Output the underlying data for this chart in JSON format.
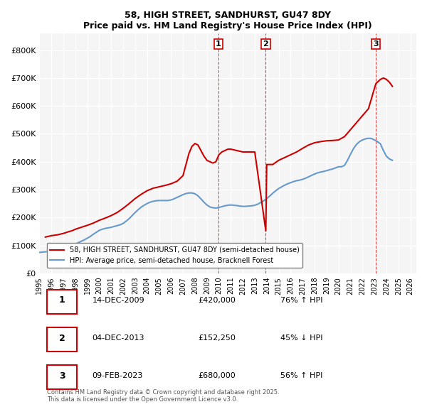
{
  "title": "58, HIGH STREET, SANDHURST, GU47 8DY",
  "subtitle": "Price paid vs. HM Land Registry's House Price Index (HPI)",
  "ylabel": "",
  "xlim_start": 1995.0,
  "xlim_end": 2026.5,
  "ylim_min": 0,
  "ylim_max": 860000,
  "yticks": [
    0,
    100000,
    200000,
    300000,
    400000,
    500000,
    600000,
    700000,
    800000
  ],
  "ytick_labels": [
    "£0",
    "£100K",
    "£200K",
    "£300K",
    "£400K",
    "£500K",
    "£600K",
    "£700K",
    "£800K"
  ],
  "legend_label_red": "58, HIGH STREET, SANDHURST, GU47 8DY (semi-detached house)",
  "legend_label_blue": "HPI: Average price, semi-detached house, Bracknell Forest",
  "sale1_date": 2009.95,
  "sale1_price": 420000,
  "sale1_label": "1",
  "sale2_date": 2013.92,
  "sale2_price": 152250,
  "sale2_label": "2",
  "sale3_date": 2023.12,
  "sale3_price": 680000,
  "sale3_label": "3",
  "red_color": "#cc0000",
  "blue_color": "#6699cc",
  "vline_color": "#cc0000",
  "background_color": "#f5f5f5",
  "grid_color": "#ffffff",
  "table_rows": [
    [
      "1",
      "14-DEC-2009",
      "£420,000",
      "76% ↑ HPI"
    ],
    [
      "2",
      "04-DEC-2013",
      "£152,250",
      "45% ↓ HPI"
    ],
    [
      "3",
      "09-FEB-2023",
      "£680,000",
      "56% ↑ HPI"
    ]
  ],
  "footer": "Contains HM Land Registry data © Crown copyright and database right 2025.\nThis data is licensed under the Open Government Licence v3.0.",
  "hpi_data_x": [
    1995.0,
    1995.25,
    1995.5,
    1995.75,
    1996.0,
    1996.25,
    1996.5,
    1996.75,
    1997.0,
    1997.25,
    1997.5,
    1997.75,
    1998.0,
    1998.25,
    1998.5,
    1998.75,
    1999.0,
    1999.25,
    1999.5,
    1999.75,
    2000.0,
    2000.25,
    2000.5,
    2000.75,
    2001.0,
    2001.25,
    2001.5,
    2001.75,
    2002.0,
    2002.25,
    2002.5,
    2002.75,
    2003.0,
    2003.25,
    2003.5,
    2003.75,
    2004.0,
    2004.25,
    2004.5,
    2004.75,
    2005.0,
    2005.25,
    2005.5,
    2005.75,
    2006.0,
    2006.25,
    2006.5,
    2006.75,
    2007.0,
    2007.25,
    2007.5,
    2007.75,
    2008.0,
    2008.25,
    2008.5,
    2008.75,
    2009.0,
    2009.25,
    2009.5,
    2009.75,
    2010.0,
    2010.25,
    2010.5,
    2010.75,
    2011.0,
    2011.25,
    2011.5,
    2011.75,
    2012.0,
    2012.25,
    2012.5,
    2012.75,
    2013.0,
    2013.25,
    2013.5,
    2013.75,
    2014.0,
    2014.25,
    2014.5,
    2014.75,
    2015.0,
    2015.25,
    2015.5,
    2015.75,
    2016.0,
    2016.25,
    2016.5,
    2016.75,
    2017.0,
    2017.25,
    2017.5,
    2017.75,
    2018.0,
    2018.25,
    2018.5,
    2018.75,
    2019.0,
    2019.25,
    2019.5,
    2019.75,
    2020.0,
    2020.25,
    2020.5,
    2020.75,
    2021.0,
    2021.25,
    2021.5,
    2021.75,
    2022.0,
    2022.25,
    2022.5,
    2022.75,
    2023.0,
    2023.25,
    2023.5,
    2023.75,
    2024.0,
    2024.25,
    2024.5
  ],
  "hpi_data_y": [
    75000,
    76000,
    77000,
    78000,
    80000,
    82000,
    84000,
    87000,
    90000,
    93000,
    97000,
    101000,
    105000,
    110000,
    115000,
    120000,
    126000,
    132000,
    140000,
    147000,
    154000,
    158000,
    161000,
    163000,
    165000,
    168000,
    171000,
    174000,
    179000,
    187000,
    196000,
    207000,
    218000,
    228000,
    237000,
    244000,
    250000,
    255000,
    258000,
    260000,
    261000,
    261000,
    261000,
    261000,
    263000,
    267000,
    272000,
    277000,
    282000,
    286000,
    288000,
    288000,
    285000,
    278000,
    267000,
    255000,
    245000,
    238000,
    235000,
    234000,
    236000,
    239000,
    242000,
    244000,
    245000,
    244000,
    243000,
    241000,
    240000,
    240000,
    241000,
    242000,
    244000,
    248000,
    254000,
    260000,
    268000,
    277000,
    287000,
    296000,
    304000,
    310000,
    316000,
    321000,
    325000,
    329000,
    332000,
    334000,
    337000,
    341000,
    346000,
    351000,
    356000,
    360000,
    363000,
    365000,
    368000,
    371000,
    374000,
    378000,
    382000,
    382000,
    387000,
    405000,
    427000,
    447000,
    462000,
    472000,
    478000,
    482000,
    484000,
    483000,
    478000,
    472000,
    464000,
    440000,
    420000,
    410000,
    405000
  ],
  "price_data_x": [
    1995.5,
    1996.0,
    1996.5,
    1997.0,
    1997.5,
    1997.75,
    1998.0,
    1998.5,
    1999.0,
    1999.5,
    2000.0,
    2000.5,
    2001.0,
    2001.5,
    2002.0,
    2002.5,
    2003.0,
    2003.5,
    2004.0,
    2004.5,
    2005.0,
    2005.5,
    2006.0,
    2006.5,
    2007.0,
    2007.25,
    2007.5,
    2007.75,
    2008.0,
    2008.25,
    2008.5,
    2008.75,
    2009.0,
    2009.5,
    2009.75,
    2009.95,
    2010.0,
    2010.25,
    2010.5,
    2010.75,
    2011.0,
    2011.5,
    2012.0,
    2012.5,
    2013.0,
    2013.92,
    2014.0,
    2014.5,
    2015.0,
    2015.5,
    2016.0,
    2016.5,
    2017.0,
    2017.5,
    2018.0,
    2018.5,
    2019.0,
    2019.5,
    2020.0,
    2020.5,
    2021.0,
    2021.5,
    2022.0,
    2022.5,
    2023.12,
    2023.5,
    2023.75,
    2024.0,
    2024.25,
    2024.5
  ],
  "price_data_y": [
    130000,
    135000,
    138000,
    143000,
    150000,
    153000,
    158000,
    165000,
    172000,
    180000,
    190000,
    198000,
    207000,
    218000,
    233000,
    250000,
    268000,
    283000,
    296000,
    305000,
    310000,
    315000,
    321000,
    330000,
    350000,
    390000,
    430000,
    455000,
    465000,
    460000,
    440000,
    420000,
    405000,
    395000,
    400000,
    420000,
    425000,
    435000,
    440000,
    445000,
    445000,
    440000,
    435000,
    435000,
    435000,
    152250,
    390000,
    390000,
    405000,
    415000,
    425000,
    435000,
    448000,
    460000,
    468000,
    472000,
    475000,
    476000,
    478000,
    490000,
    515000,
    540000,
    565000,
    590000,
    680000,
    695000,
    700000,
    695000,
    685000,
    670000
  ]
}
